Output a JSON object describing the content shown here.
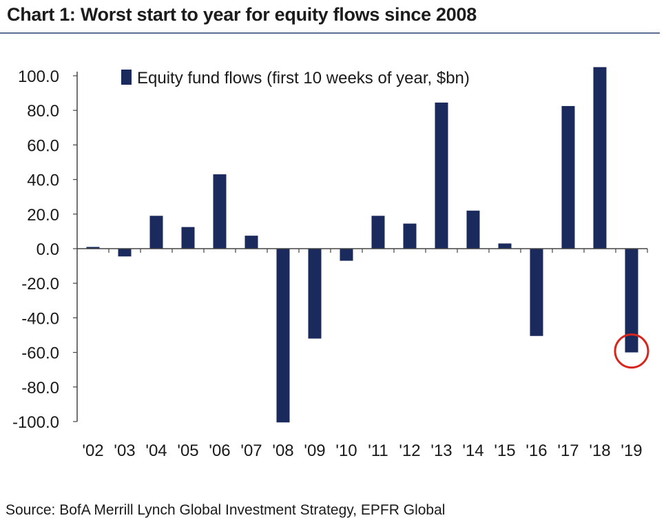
{
  "title": "Chart 1: Worst start to year for equity flows since 2008",
  "source": "Source: BofA Merrill Lynch Global Investment Strategy, EPFR Global",
  "colors": {
    "bar": "#1b2a5c",
    "highlight_circle": "#d7261e",
    "axis": "#444444"
  },
  "chart_data": {
    "type": "bar",
    "categories": [
      "'02",
      "'03",
      "'04",
      "'05",
      "'06",
      "'07",
      "'08",
      "'09",
      "'10",
      "'11",
      "'12",
      "'13",
      "'14",
      "'15",
      "'16",
      "'17",
      "'18",
      "'19"
    ],
    "series": [
      {
        "name": "Equity fund flows (first 10 weeks of year, $bn)",
        "values": [
          1.0,
          -4.5,
          19.0,
          12.5,
          43.0,
          7.5,
          -100.5,
          -52.0,
          -7.0,
          19.0,
          14.5,
          84.5,
          22.0,
          3.0,
          -50.5,
          82.5,
          105.0,
          -60.0
        ]
      }
    ],
    "ylim": [
      -100,
      100
    ],
    "yticks": [
      "100.0",
      "80.0",
      "60.0",
      "40.0",
      "20.0",
      "0.0",
      "-20.0",
      "-40.0",
      "-60.0",
      "-80.0",
      "-100.0"
    ],
    "legend": "top-center",
    "highlight": "'19",
    "grid": false
  }
}
